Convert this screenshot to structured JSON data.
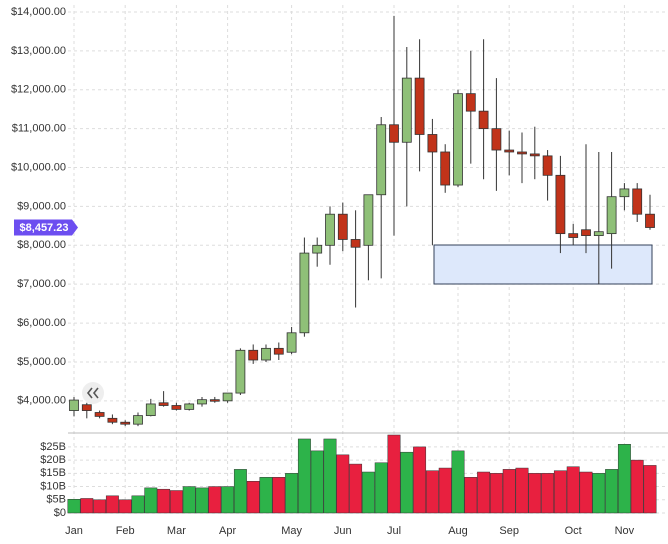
{
  "chart_data": {
    "type": "candlestick",
    "categories": [
      "Jan",
      null,
      null,
      null,
      "Feb",
      null,
      null,
      null,
      "Mar",
      null,
      null,
      null,
      "Apr",
      null,
      null,
      null,
      null,
      "May",
      null,
      null,
      null,
      "Jun",
      null,
      null,
      null,
      "Jul",
      null,
      null,
      null,
      null,
      "Aug",
      null,
      null,
      null,
      "Sep",
      null,
      null,
      null,
      null,
      "Oct",
      null,
      null,
      null,
      "Nov",
      null,
      null
    ],
    "open": [
      3750,
      3900,
      3700,
      3550,
      3450,
      3400,
      3620,
      3950,
      3880,
      3780,
      3920,
      4030,
      4000,
      4200,
      5300,
      5050,
      5350,
      5250,
      5750,
      7800,
      8000,
      8800,
      8150,
      8000,
      9300,
      11100,
      10650,
      12300,
      10850,
      10400,
      9550,
      11900,
      11450,
      11000,
      10450,
      10400,
      10350,
      10300,
      9800,
      8300,
      8400,
      8250,
      8300,
      9250,
      9450,
      8800
    ],
    "high": [
      4100,
      3950,
      3750,
      3650,
      3500,
      3700,
      4050,
      4250,
      3950,
      3950,
      4100,
      4100,
      4200,
      5350,
      5450,
      5450,
      5500,
      5900,
      8200,
      8200,
      9000,
      9100,
      8900,
      9300,
      11300,
      13900,
      13100,
      13300,
      11250,
      10600,
      12000,
      13000,
      13300,
      12300,
      10950,
      10900,
      11050,
      10450,
      10300,
      8550,
      10600,
      10400,
      10400,
      9600,
      9600,
      9300
    ],
    "low": [
      3600,
      3550,
      3550,
      3400,
      3350,
      3350,
      3600,
      3850,
      3750,
      3750,
      3850,
      3950,
      3950,
      4150,
      4950,
      5000,
      5050,
      5200,
      5650,
      7450,
      7500,
      7850,
      6400,
      7100,
      7150,
      8250,
      9000,
      9900,
      8000,
      9350,
      9500,
      10100,
      9700,
      9400,
      9800,
      9600,
      9700,
      9150,
      7800,
      8000,
      7800,
      7000,
      7400,
      8900,
      8600,
      8400
    ],
    "close": [
      4020,
      3750,
      3600,
      3450,
      3400,
      3620,
      3920,
      3880,
      3780,
      3920,
      4030,
      3990,
      4200,
      5300,
      5050,
      5350,
      5200,
      5750,
      7800,
      8000,
      8800,
      8150,
      7950,
      9300,
      11100,
      10650,
      12300,
      10850,
      10400,
      9550,
      11900,
      11450,
      11000,
      10450,
      10400,
      10350,
      10300,
      9800,
      8300,
      8200,
      8250,
      8350,
      9250,
      9450,
      8800,
      8457.23
    ],
    "up_color": "#8fc078",
    "down_color": "#c1331a",
    "ylim": [
      3250,
      14180
    ],
    "yticks": [
      {
        "value": 4000,
        "label": "$4,000.00"
      },
      {
        "value": 5000,
        "label": "$5,000.00"
      },
      {
        "value": 6000,
        "label": "$6,000.00"
      },
      {
        "value": 7000,
        "label": "$7,000.00"
      },
      {
        "value": 8000,
        "label": "$8,000.00"
      },
      {
        "value": 9000,
        "label": "$9,000.00"
      },
      {
        "value": 10000,
        "label": "$10,000.00"
      },
      {
        "value": 11000,
        "label": "$11,000.00"
      },
      {
        "value": 12000,
        "label": "$12,000.00"
      },
      {
        "value": 13000,
        "label": "$13,000.00"
      },
      {
        "value": 14000,
        "label": "$14,000.00"
      }
    ],
    "grid": true,
    "last_price": {
      "value": 8457.23,
      "label": "$8,457.23"
    },
    "volume": {
      "values": [
        5.2,
        5.5,
        5,
        6.5,
        5,
        6.5,
        9.5,
        9,
        8.5,
        10,
        9.5,
        10,
        10,
        16.5,
        12,
        13.5,
        13.5,
        15,
        28,
        23.5,
        28,
        22,
        18.5,
        15.5,
        19,
        29.5,
        23,
        25,
        16,
        17,
        23.5,
        13.5,
        15.5,
        15,
        16.5,
        17,
        15,
        15,
        16,
        17.5,
        15.5,
        15,
        16.5,
        26,
        20,
        18
      ],
      "up_color": "#2db34a",
      "down_color": "#e8203f",
      "ylim": [
        0,
        29.5
      ],
      "yticks": [
        {
          "value": 0,
          "label": "$0"
        },
        {
          "value": 5,
          "label": "$5B"
        },
        {
          "value": 10,
          "label": "$10B"
        },
        {
          "value": 15,
          "label": "$15B"
        },
        {
          "value": 20,
          "label": "$20B"
        },
        {
          "value": 25,
          "label": "$25B"
        }
      ]
    }
  }
}
